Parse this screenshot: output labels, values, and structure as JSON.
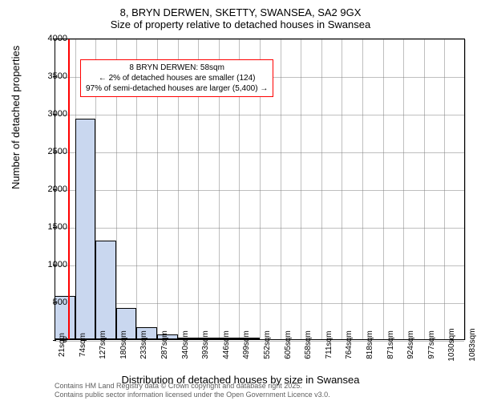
{
  "title_main": "8, BRYN DERWEN, SKETTY, SWANSEA, SA2 9GX",
  "title_sub": "Size of property relative to detached houses in Swansea",
  "ylabel": "Number of detached properties",
  "xlabel": "Distribution of detached houses by size in Swansea",
  "chart": {
    "type": "histogram",
    "xlim": [
      21,
      1083
    ],
    "ylim": [
      0,
      4000
    ],
    "ytick_step": 500,
    "yticks": [
      0,
      500,
      1000,
      1500,
      2000,
      2500,
      3000,
      3500,
      4000
    ],
    "xticks": [
      21,
      74,
      127,
      180,
      233,
      287,
      340,
      393,
      446,
      499,
      552,
      605,
      658,
      711,
      764,
      818,
      871,
      924,
      977,
      1030,
      1083
    ],
    "xtick_suffix": "sqm",
    "bar_color": "#c9d7ef",
    "bar_border": "#000000",
    "grid_color": "#7f7f7f",
    "background_color": "#ffffff",
    "bars": [
      {
        "x0": 21,
        "x1": 74,
        "y": 580
      },
      {
        "x0": 74,
        "x1": 127,
        "y": 2940
      },
      {
        "x0": 127,
        "x1": 180,
        "y": 1320
      },
      {
        "x0": 180,
        "x1": 233,
        "y": 430
      },
      {
        "x0": 233,
        "x1": 287,
        "y": 170
      },
      {
        "x0": 287,
        "x1": 340,
        "y": 70
      },
      {
        "x0": 340,
        "x1": 393,
        "y": 35
      },
      {
        "x0": 393,
        "x1": 446,
        "y": 20
      },
      {
        "x0": 446,
        "x1": 499,
        "y": 12
      },
      {
        "x0": 499,
        "x1": 552,
        "y": 8
      }
    ],
    "reference_line_x": 58,
    "reference_line_color": "#ff0000"
  },
  "annotation": {
    "line1": "8 BRYN DERWEN: 58sqm",
    "line2": "← 2% of detached houses are smaller (124)",
    "line3": "97% of semi-detached houses are larger (5,400) →",
    "border_color": "#ff0000"
  },
  "footer": {
    "line1": "Contains HM Land Registry data © Crown copyright and database right 2025.",
    "line2": "Contains public sector information licensed under the Open Government Licence v3.0."
  }
}
